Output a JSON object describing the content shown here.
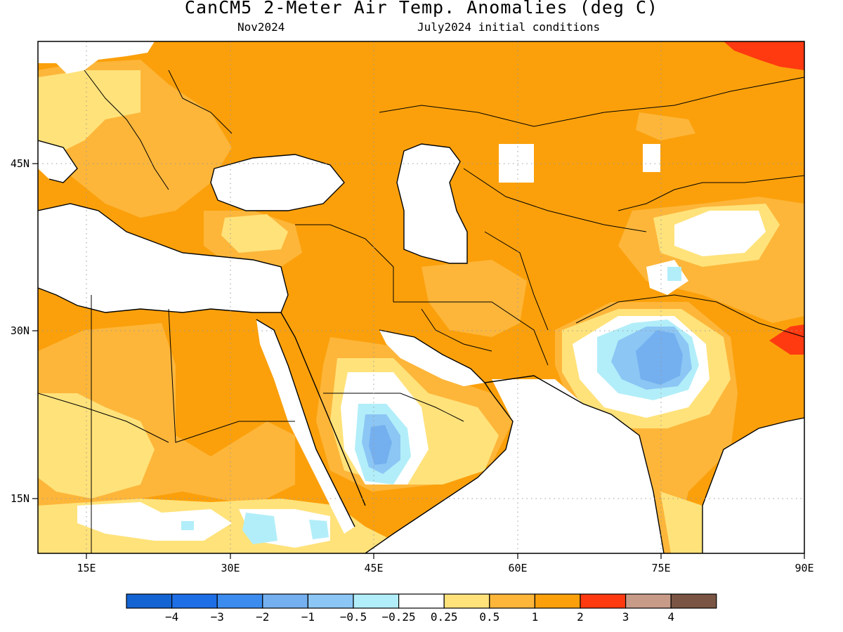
{
  "title": "CanCM5 2-Meter Air Temp. Anomalies (deg C)",
  "subtitle_left": "Nov2024",
  "subtitle_right": "July2024 initial conditions",
  "map": {
    "lon_range": [
      10,
      90
    ],
    "lat_range": [
      9,
      55
    ],
    "lon_ticks": [
      {
        "value": 15,
        "label": "15E"
      },
      {
        "value": 30,
        "label": "30E"
      },
      {
        "value": 45,
        "label": "45E"
      },
      {
        "value": 60,
        "label": "60E"
      },
      {
        "value": 75,
        "label": "75E"
      },
      {
        "value": 90,
        "label": "90E"
      }
    ],
    "lat_ticks": [
      {
        "value": 15,
        "label": "15N"
      },
      {
        "value": 30,
        "label": "30N"
      },
      {
        "value": 45,
        "label": "45N"
      }
    ],
    "grid": "dotted",
    "field_colors": {
      "no_anomaly": "#ffffff",
      "slight_warm": "#ffe27a",
      "warm": "#fdb63a",
      "warmer": "#fba00b",
      "hot": "#ff3a10",
      "slight_cool": "#b2eef9",
      "cool": "#8cc6f5",
      "cooler": "#74b0ef"
    }
  },
  "colorbar": {
    "colors": [
      "#1463d2",
      "#1e6ee6",
      "#3c8cf0",
      "#74b0ef",
      "#8cc6f5",
      "#b2eef9",
      "#ffffff",
      "#ffe27a",
      "#fdb63a",
      "#fba00b",
      "#ff3a10",
      "#c89b89",
      "#7a5543"
    ],
    "labels": [
      "-4",
      "-3",
      "-2",
      "-1",
      "-0.5",
      "-0.25",
      "0.25",
      "0.5",
      "1",
      "2",
      "3",
      "4"
    ]
  }
}
